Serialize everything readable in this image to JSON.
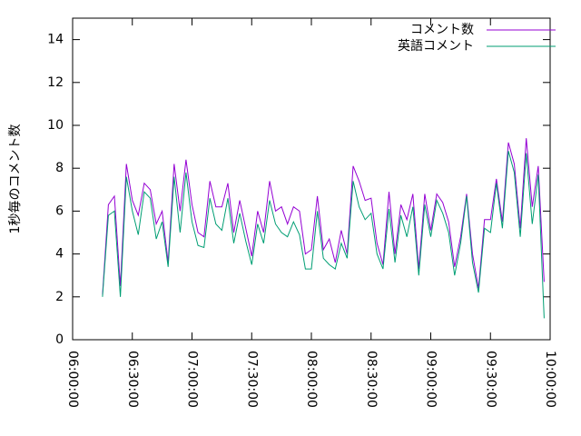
{
  "chart_data": {
    "type": "line",
    "ylabel": "1秒毎のコメント数",
    "x": [
      "06:15:00",
      "06:18:00",
      "06:21:00",
      "06:24:00",
      "06:27:00",
      "06:30:00",
      "06:33:00",
      "06:36:00",
      "06:39:00",
      "06:42:00",
      "06:45:00",
      "06:48:00",
      "06:51:00",
      "06:54:00",
      "06:57:00",
      "07:00:00",
      "07:03:00",
      "07:06:00",
      "07:09:00",
      "07:12:00",
      "07:15:00",
      "07:18:00",
      "07:21:00",
      "07:24:00",
      "07:27:00",
      "07:30:00",
      "07:33:00",
      "07:36:00",
      "07:39:00",
      "07:42:00",
      "07:45:00",
      "07:48:00",
      "07:51:00",
      "07:54:00",
      "07:57:00",
      "08:00:00",
      "08:03:00",
      "08:06:00",
      "08:09:00",
      "08:12:00",
      "08:15:00",
      "08:18:00",
      "08:21:00",
      "08:24:00",
      "08:27:00",
      "08:30:00",
      "08:33:00",
      "08:36:00",
      "08:39:00",
      "08:42:00",
      "08:45:00",
      "08:48:00",
      "08:51:00",
      "08:54:00",
      "08:57:00",
      "09:00:00",
      "09:03:00",
      "09:06:00",
      "09:09:00",
      "09:12:00",
      "09:15:00",
      "09:18:00",
      "09:21:00",
      "09:24:00",
      "09:27:00",
      "09:30:00",
      "09:33:00",
      "09:36:00",
      "09:39:00",
      "09:42:00",
      "09:45:00",
      "09:48:00",
      "09:51:00",
      "09:54:00",
      "09:57:00"
    ],
    "series": [
      {
        "name": "コメント数",
        "color": "#9400d3",
        "values": [
          2.1,
          6.3,
          6.7,
          2.5,
          8.2,
          6.5,
          5.8,
          7.3,
          7.0,
          5.4,
          6.0,
          3.6,
          8.2,
          6.0,
          8.4,
          6.3,
          5.0,
          4.8,
          7.4,
          6.2,
          6.2,
          7.3,
          5.0,
          6.5,
          5.2,
          3.9,
          6.0,
          5.0,
          7.4,
          6.0,
          6.2,
          5.4,
          6.2,
          6.0,
          4.0,
          4.2,
          6.7,
          4.2,
          4.7,
          3.6,
          5.1,
          4.0,
          8.1,
          7.4,
          6.5,
          6.6,
          4.5,
          3.5,
          6.9,
          4.0,
          6.3,
          5.6,
          6.8,
          3.3,
          6.8,
          5.1,
          6.8,
          6.4,
          5.5,
          3.4,
          4.8,
          6.8,
          4.0,
          2.4,
          5.6,
          5.6,
          7.5,
          5.5,
          9.2,
          8.2,
          5.2,
          9.4,
          6.2,
          8.1,
          2.7
        ]
      },
      {
        "name": "英語コメント",
        "color": "#009e73",
        "values": [
          2.0,
          5.8,
          6.0,
          2.0,
          7.6,
          6.0,
          4.9,
          6.9,
          6.6,
          4.7,
          5.5,
          3.4,
          7.6,
          5.0,
          7.8,
          5.5,
          4.4,
          4.3,
          6.6,
          5.4,
          5.1,
          6.6,
          4.5,
          5.9,
          4.6,
          3.5,
          5.4,
          4.5,
          6.5,
          5.4,
          5.0,
          4.8,
          5.5,
          4.9,
          3.3,
          3.3,
          6.0,
          3.8,
          3.5,
          3.3,
          4.5,
          3.8,
          7.4,
          6.2,
          5.6,
          5.9,
          4.0,
          3.3,
          6.1,
          3.6,
          5.8,
          4.8,
          6.2,
          3.0,
          6.3,
          4.8,
          6.5,
          5.9,
          5.0,
          3.0,
          4.5,
          6.7,
          3.6,
          2.2,
          5.2,
          5.0,
          7.3,
          5.2,
          8.8,
          7.8,
          4.8,
          8.7,
          5.4,
          7.7,
          1.0
        ]
      }
    ],
    "xlim": [
      "06:00:00",
      "10:00:00"
    ],
    "xticks": [
      "06:00:00",
      "06:30:00",
      "07:00:00",
      "07:30:00",
      "08:00:00",
      "08:30:00",
      "09:00:00",
      "09:30:00",
      "10:00:00"
    ],
    "ylim": [
      0,
      15
    ],
    "yticks": [
      0,
      2,
      4,
      6,
      8,
      10,
      12,
      14
    ],
    "legend": "top-right"
  }
}
